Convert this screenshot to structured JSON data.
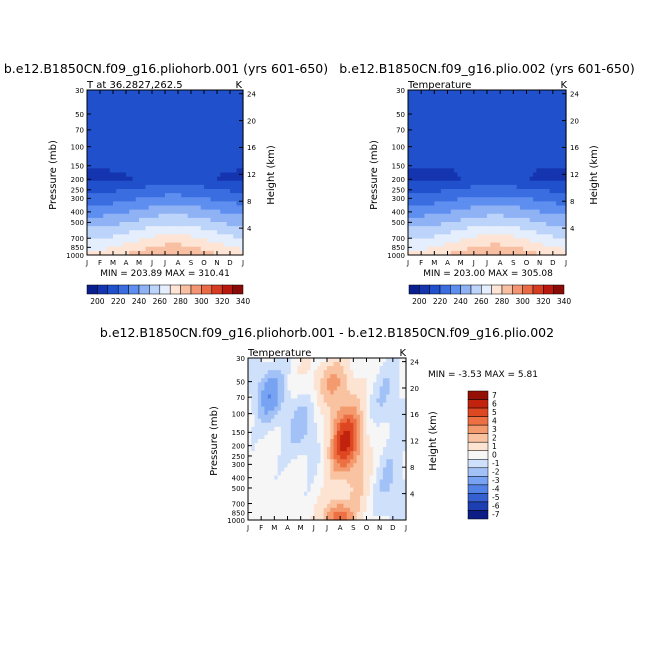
{
  "chart_data": [
    {
      "type": "heatmap",
      "title": "b.e12.B1850CN.f09_g16.pliohorb.001 (yrs 601-650)",
      "left_label": "T at 36.2827,262.5",
      "right_label": "K",
      "ylabel": "Pressure (mb)",
      "ylabel_right": "Height (km)",
      "x_ticks": [
        "J",
        "F",
        "M",
        "A",
        "M",
        "J",
        "J",
        "A",
        "S",
        "O",
        "N",
        "D",
        "J"
      ],
      "y_ticks": [
        "30",
        "50",
        "70",
        "100",
        "150",
        "200",
        "250",
        "300",
        "400",
        "500",
        "700",
        "850",
        "1000"
      ],
      "height_ticks": [
        "24",
        "20",
        "16",
        "12",
        "8",
        "4"
      ],
      "stats": "MIN = 203.89  MAX = 310.41",
      "min": 203.89,
      "max": 310.41,
      "colorbar_labels": [
        "200",
        "220",
        "240",
        "260",
        "280",
        "300",
        "320",
        "340"
      ]
    },
    {
      "type": "heatmap",
      "title": "b.e12.B1850CN.f09_g16.plio.002 (yrs 601-650)",
      "left_label": "Temperature",
      "right_label": "K",
      "ylabel": "Pressure (mb)",
      "ylabel_right": "Height (km)",
      "x_ticks": [
        "J",
        "F",
        "M",
        "A",
        "M",
        "J",
        "J",
        "A",
        "S",
        "O",
        "N",
        "D",
        "J"
      ],
      "y_ticks": [
        "30",
        "50",
        "70",
        "100",
        "150",
        "200",
        "250",
        "300",
        "400",
        "500",
        "700",
        "850",
        "1000"
      ],
      "height_ticks": [
        "24",
        "20",
        "16",
        "12",
        "8",
        "4"
      ],
      "stats": "MIN = 203.00  MAX = 305.08",
      "min": 203.0,
      "max": 305.08,
      "colorbar_labels": [
        "200",
        "220",
        "240",
        "260",
        "280",
        "300",
        "320",
        "340"
      ]
    },
    {
      "type": "heatmap",
      "title": "b.e12.B1850CN.f09_g16.pliohorb.001 - b.e12.B1850CN.f09_g16.plio.002",
      "left_label": "Temperature",
      "right_label": "K",
      "ylabel": "Pressure (mb)",
      "ylabel_right": "Height (km)",
      "x_ticks": [
        "J",
        "F",
        "M",
        "A",
        "M",
        "J",
        "J",
        "A",
        "S",
        "O",
        "N",
        "D",
        "J"
      ],
      "y_ticks": [
        "30",
        "50",
        "70",
        "100",
        "150",
        "200",
        "250",
        "300",
        "400",
        "500",
        "700",
        "850",
        "1000"
      ],
      "height_ticks": [
        "24",
        "20",
        "16",
        "12",
        "8",
        "4"
      ],
      "stats": "MIN =  -3.53  MAX =    5.81",
      "min": -3.53,
      "max": 5.81,
      "colorbar_labels": [
        "7",
        "6",
        "5",
        "4",
        "3",
        "2",
        "1",
        "0",
        "-1",
        "-2",
        "-3",
        "-4",
        "-5",
        "-6",
        "-7"
      ]
    }
  ],
  "colors": {
    "temperature_scale": [
      "#0a1f8f",
      "#1535b0",
      "#2050cc",
      "#3a6ee0",
      "#5d8ef0",
      "#8fb2f5",
      "#bcd3fa",
      "#e5eefc",
      "#fde4d4",
      "#f8bfa3",
      "#f39572",
      "#e96a45",
      "#d63c22",
      "#b8180e",
      "#8a0a05"
    ],
    "difference_scale": [
      "#0c1e85",
      "#1e3fb2",
      "#3560d2",
      "#5282e6",
      "#77a3f2",
      "#a2c2f7",
      "#cfe0fb",
      "#f6f6f6",
      "#fde3d1",
      "#f9c2a0",
      "#f49a6f",
      "#ec7043",
      "#dd4721",
      "#c1230e",
      "#941005"
    ]
  }
}
